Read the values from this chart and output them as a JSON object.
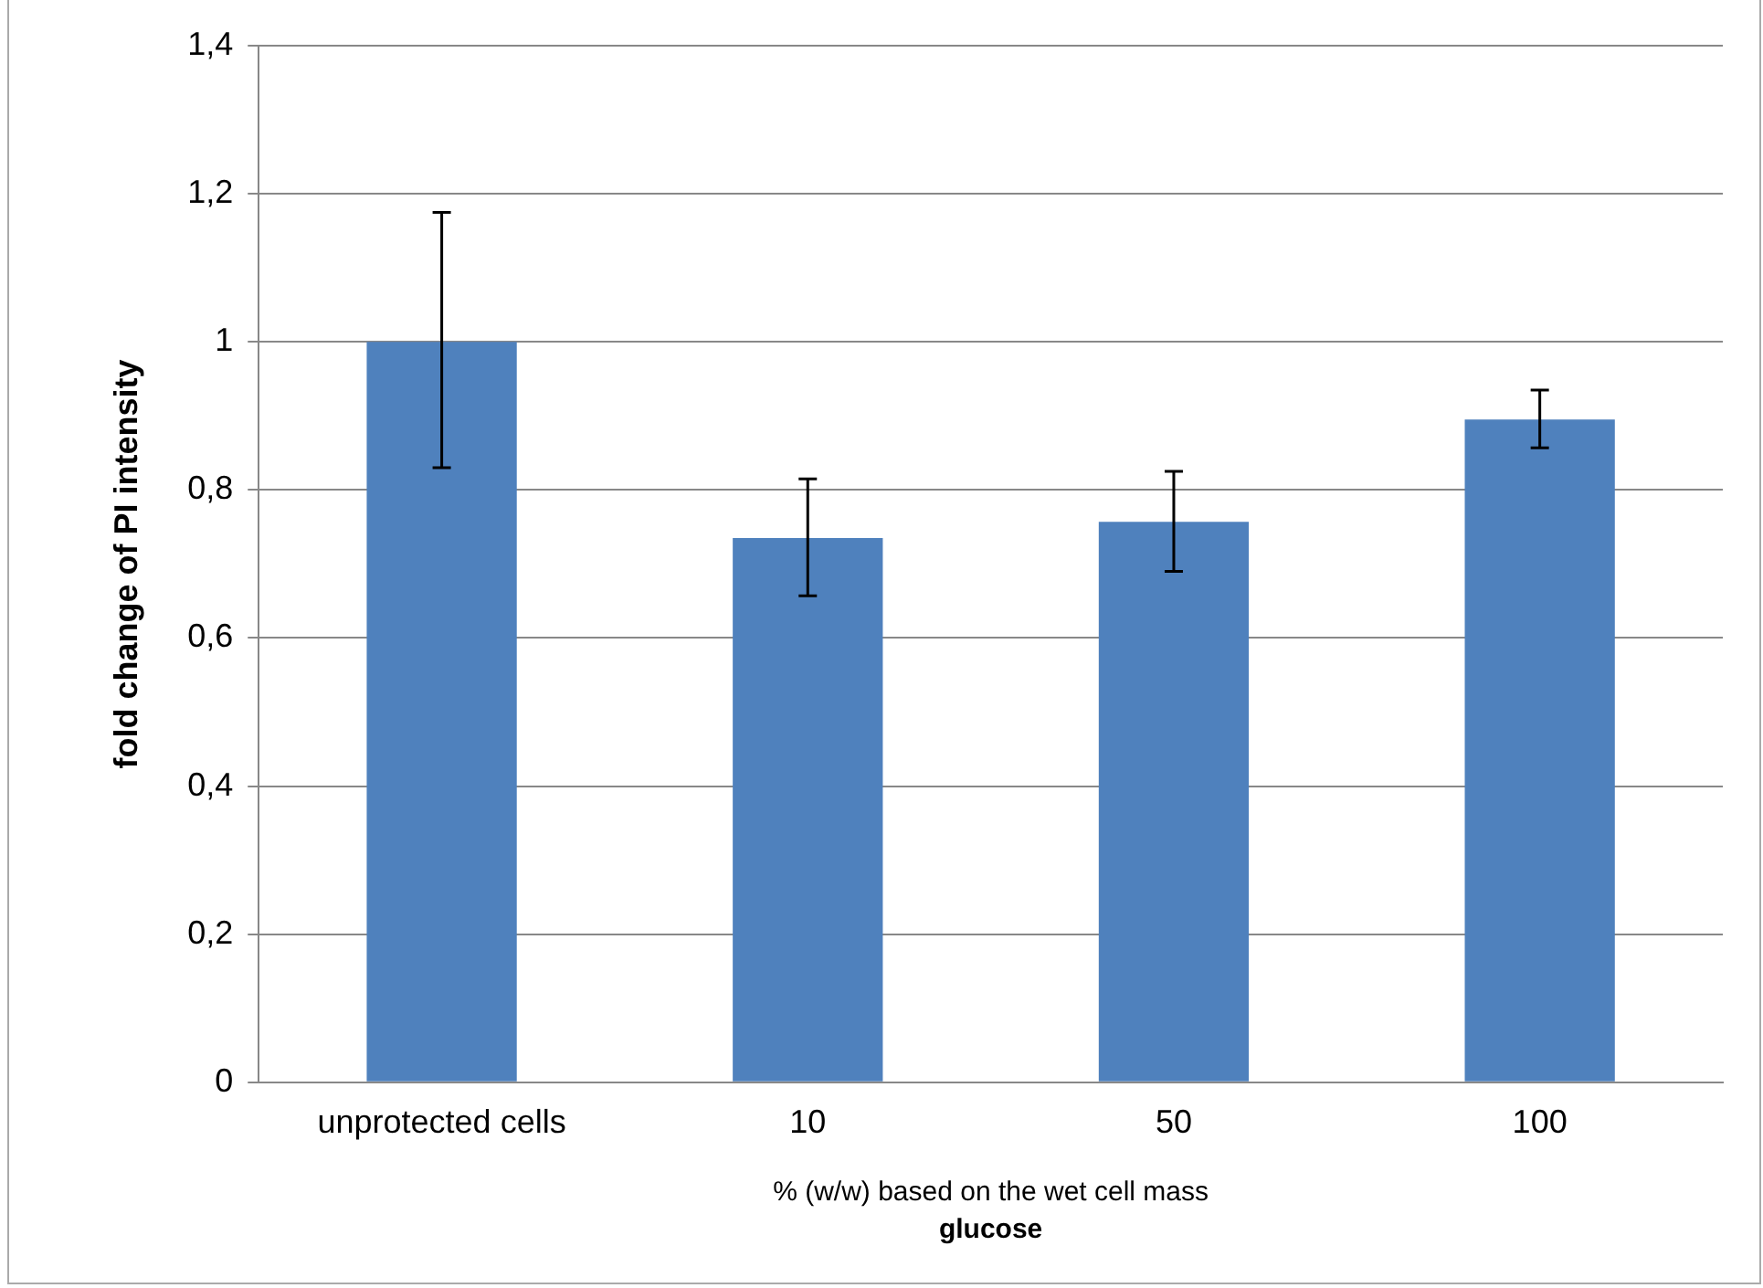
{
  "chart_data": {
    "type": "bar",
    "ylabel": "fold change of PI intensity",
    "xlabel": "% (w/w) based on the wet cell mass",
    "annotations": [
      "glucose"
    ],
    "categories": [
      "unprotected cells",
      "10",
      "50",
      "100"
    ],
    "values": [
      1.0,
      0.735,
      0.757,
      0.895
    ],
    "errors": [
      [
        0.83,
        1.175
      ],
      [
        0.657,
        0.815
      ],
      [
        0.69,
        0.825
      ],
      [
        0.857,
        0.935
      ]
    ],
    "color": "#4f81bd",
    "ylim": [
      0,
      1.4
    ],
    "yticks": [
      0,
      {
        "value": 0.2,
        "label": "0,2"
      },
      {
        "value": 0.4,
        "label": "0,4"
      },
      {
        "value": 0.6,
        "label": "0,6"
      },
      {
        "value": 0.8,
        "label": "0,8"
      },
      1,
      {
        "value": 1.2,
        "label": "1,2"
      },
      {
        "value": 1.4,
        "label": "1,4"
      }
    ],
    "grid": "y",
    "legend": false
  }
}
